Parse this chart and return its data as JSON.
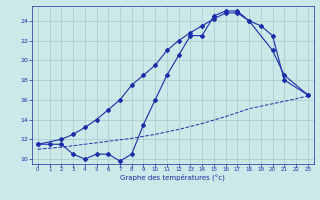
{
  "xlabel": "Graphe des températures (°c)",
  "xlim": [
    -0.5,
    23.5
  ],
  "ylim": [
    9.5,
    25.5
  ],
  "xticks": [
    0,
    1,
    2,
    3,
    4,
    5,
    6,
    7,
    8,
    9,
    10,
    11,
    12,
    13,
    14,
    15,
    16,
    17,
    18,
    19,
    20,
    21,
    22,
    23
  ],
  "yticks": [
    10,
    12,
    14,
    16,
    18,
    20,
    22,
    24
  ],
  "bg_color": "#cce8e8",
  "grid_color": "#aacece",
  "line_color": "#1a2eaa",
  "c1_x": [
    0,
    1,
    2,
    3,
    4,
    5,
    6,
    7,
    8,
    9,
    10,
    11,
    12,
    13,
    14,
    15,
    16,
    17,
    18,
    19,
    20,
    21,
    23
  ],
  "c1_y": [
    11.5,
    11.5,
    11.5,
    10.5,
    10.0,
    10.5,
    10.5,
    9.8,
    10.5,
    13.5,
    16.0,
    18.5,
    20.5,
    22.5,
    22.5,
    24.5,
    25.0,
    25.0,
    24.0,
    23.5,
    22.5,
    18.0,
    16.5
  ],
  "c2_x": [
    0,
    2,
    3,
    4,
    5,
    6,
    7,
    8,
    9,
    10,
    11,
    12,
    13,
    14,
    15,
    16,
    17,
    18,
    20,
    21,
    23
  ],
  "c2_y": [
    11.5,
    12.0,
    12.5,
    13.2,
    14.0,
    15.0,
    16.0,
    17.5,
    18.5,
    19.5,
    21.0,
    22.0,
    22.8,
    23.5,
    24.2,
    24.8,
    24.8,
    24.0,
    21.0,
    18.5,
    16.5
  ],
  "c3_x": [
    0,
    2,
    4,
    6,
    8,
    10,
    12,
    14,
    16,
    18,
    20,
    22,
    23
  ],
  "c3_y": [
    11.0,
    11.2,
    11.5,
    11.8,
    12.1,
    12.5,
    13.0,
    13.6,
    14.3,
    15.1,
    15.6,
    16.1,
    16.4
  ]
}
